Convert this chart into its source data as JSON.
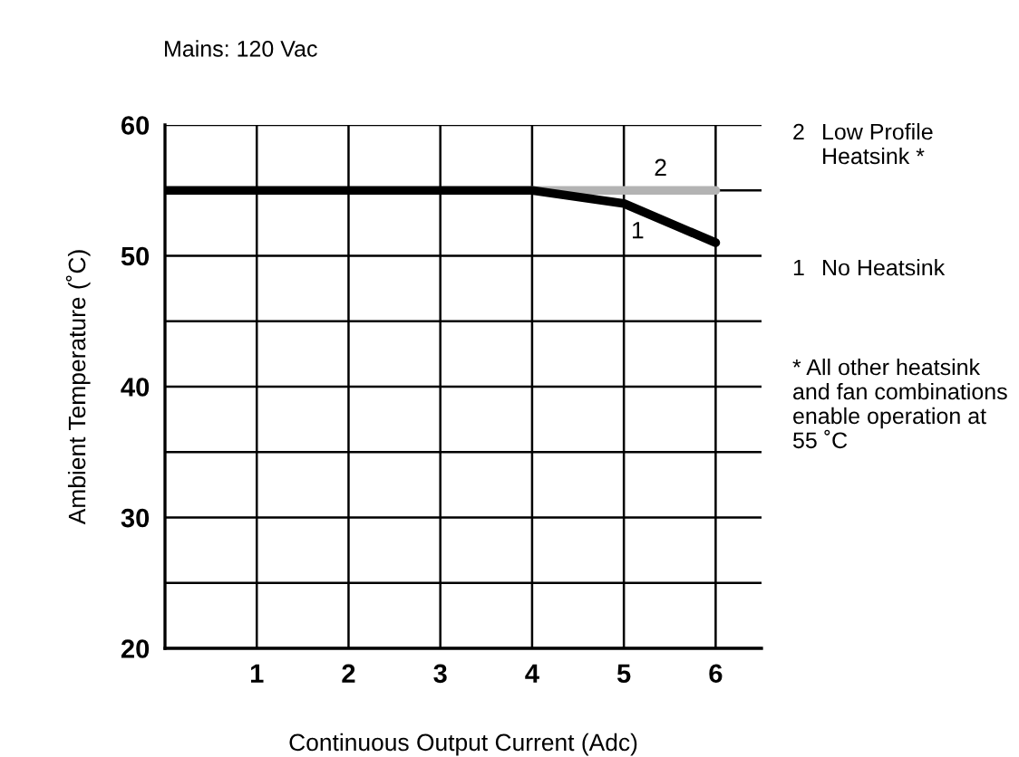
{
  "chart_data": {
    "type": "line",
    "subtitle": "Mains: 120 Vac",
    "xlabel": "Continuous Output Current (Adc)",
    "ylabel": "Ambient Temperature (˚C)",
    "xlim": [
      0,
      6.5
    ],
    "xticks": [
      1,
      2,
      3,
      4,
      5,
      6
    ],
    "ylim": [
      20,
      60
    ],
    "yticks": [
      20,
      {
        "value": 25,
        "label": null
      },
      30,
      {
        "value": 35,
        "label": null
      },
      40,
      {
        "value": 45,
        "label": null
      },
      50,
      {
        "value": 55,
        "label": null
      },
      60
    ],
    "grid": true,
    "legend": "right",
    "marker": "none",
    "line_style": "solid",
    "series": [
      {
        "name": "No Heatsink",
        "color": "#000000",
        "x": [
          0,
          1,
          2,
          3,
          4,
          5,
          6
        ],
        "values": [
          55,
          55,
          55,
          55,
          55,
          54,
          51
        ]
      },
      {
        "name": "Low Profile Heatsink *",
        "color": "#b3b3b3",
        "x": [
          4,
          5,
          6
        ],
        "values": [
          55,
          55,
          55
        ]
      }
    ],
    "annotations": [
      "2",
      "1",
      "2",
      "1",
      "* All other heatsink and fan combinations enable operation at 55 ˚C"
    ]
  }
}
